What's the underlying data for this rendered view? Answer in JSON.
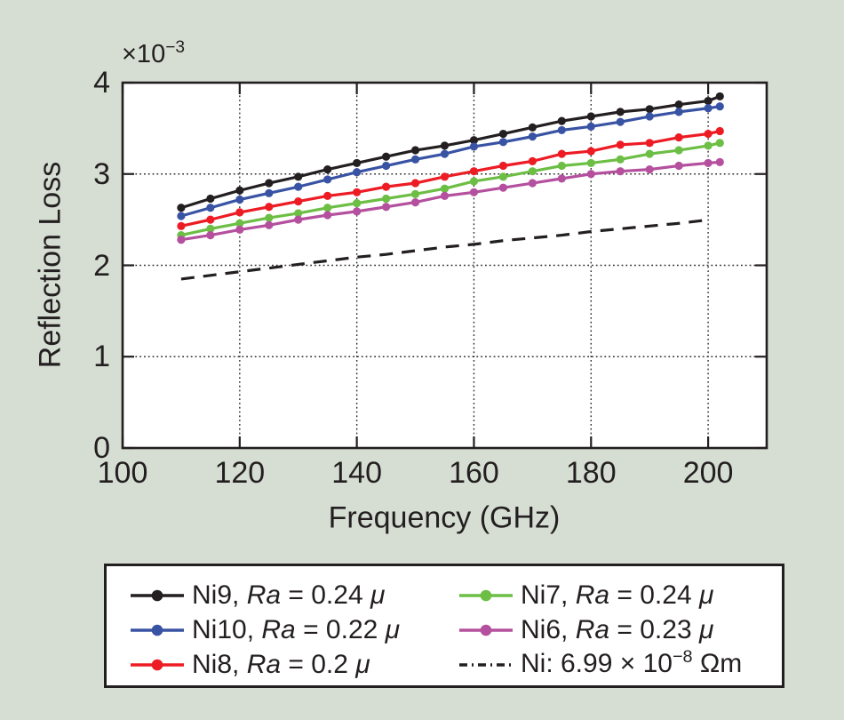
{
  "figure": {
    "background_color": "#d6ded3",
    "plot_background_color": "#ffffff",
    "frame_color": "#231f20",
    "grid_color": "#2e2e2e",
    "text_color": "#231f20"
  },
  "chart_data": {
    "type": "line",
    "title": "",
    "xlabel": "Frequency (GHz)",
    "ylabel": "Reflection Loss",
    "y_axis_multiplier": "×10⁻³",
    "y_axis_multiplier_tokens": [
      {
        "t": "×10"
      },
      {
        "t": "−3",
        "sup": true
      }
    ],
    "xlim": [
      100,
      210
    ],
    "ylim": [
      0,
      4
    ],
    "xticks": [
      100,
      120,
      140,
      160,
      180,
      200
    ],
    "yticks": [
      0,
      1,
      2,
      3,
      4
    ],
    "grid": "dotted, at x=120..200 step 20 and y=1,2,3",
    "legend_position": "below plot, 2 columns, boxed",
    "x": [
      110,
      115,
      120,
      125,
      130,
      135,
      140,
      145,
      150,
      155,
      160,
      165,
      170,
      175,
      180,
      185,
      190,
      195,
      200,
      202
    ],
    "series": [
      {
        "name": "Ni9",
        "label": "Ni9, Ra = 0.24 μ",
        "color": "#231f20",
        "line": "solid",
        "marker": "circle",
        "values": [
          2.63,
          2.73,
          2.82,
          2.9,
          2.97,
          3.05,
          3.12,
          3.19,
          3.26,
          3.31,
          3.37,
          3.44,
          3.51,
          3.58,
          3.63,
          3.68,
          3.71,
          3.76,
          3.8,
          3.85
        ]
      },
      {
        "name": "Ni10",
        "label": "Ni10, Ra = 0.22 μ",
        "color": "#3953a4",
        "line": "solid",
        "marker": "circle",
        "values": [
          2.54,
          2.63,
          2.72,
          2.79,
          2.86,
          2.94,
          3.02,
          3.09,
          3.16,
          3.22,
          3.3,
          3.35,
          3.41,
          3.48,
          3.52,
          3.57,
          3.63,
          3.68,
          3.72,
          3.74
        ]
      },
      {
        "name": "Ni8",
        "label": "Ni8, Ra = 0.2 μ",
        "color": "#ed1c24",
        "line": "solid",
        "marker": "circle",
        "values": [
          2.43,
          2.5,
          2.58,
          2.64,
          2.7,
          2.76,
          2.8,
          2.86,
          2.9,
          2.97,
          3.03,
          3.09,
          3.14,
          3.22,
          3.25,
          3.32,
          3.34,
          3.4,
          3.44,
          3.47
        ]
      },
      {
        "name": "Ni7",
        "label": "Ni7, Ra = 0.24 μ",
        "color": "#6cbe45",
        "line": "solid",
        "marker": "circle",
        "values": [
          2.33,
          2.4,
          2.46,
          2.52,
          2.57,
          2.63,
          2.68,
          2.73,
          2.78,
          2.84,
          2.92,
          2.97,
          3.03,
          3.09,
          3.12,
          3.16,
          3.22,
          3.26,
          3.31,
          3.34
        ]
      },
      {
        "name": "Ni6",
        "label": "Ni6, Ra = 0.23 μ",
        "color": "#b4509e",
        "line": "solid",
        "marker": "circle",
        "values": [
          2.28,
          2.33,
          2.39,
          2.44,
          2.5,
          2.55,
          2.59,
          2.64,
          2.69,
          2.76,
          2.8,
          2.85,
          2.9,
          2.95,
          3.0,
          3.03,
          3.05,
          3.09,
          3.12,
          3.13
        ]
      },
      {
        "name": "Ni",
        "label": "Ni: 6.99 × 10⁻⁸ Ωm",
        "color": "#231f20",
        "line": "dashed",
        "marker": "none",
        "x": [
          110,
          115,
          120,
          125,
          130,
          135,
          140,
          145,
          150,
          155,
          160,
          165,
          170,
          175,
          180,
          185,
          190,
          195,
          199
        ],
        "values": [
          1.85,
          1.89,
          1.93,
          1.97,
          2.01,
          2.05,
          2.09,
          2.12,
          2.16,
          2.2,
          2.23,
          2.27,
          2.3,
          2.33,
          2.37,
          2.4,
          2.43,
          2.46,
          2.49
        ]
      }
    ],
    "legend": {
      "columns": 2,
      "entries": [
        {
          "series": "Ni9",
          "column": 0,
          "row": 0,
          "tokens": [
            {
              "t": "Ni9, "
            },
            {
              "t": "Ra",
              "i": true
            },
            {
              "t": " = 0.24 "
            },
            {
              "t": "μ",
              "i": true
            }
          ]
        },
        {
          "series": "Ni10",
          "column": 0,
          "row": 1,
          "tokens": [
            {
              "t": "Ni10, "
            },
            {
              "t": "Ra",
              "i": true
            },
            {
              "t": " = 0.22 "
            },
            {
              "t": "μ",
              "i": true
            }
          ]
        },
        {
          "series": "Ni8",
          "column": 0,
          "row": 2,
          "tokens": [
            {
              "t": "Ni8, "
            },
            {
              "t": "Ra",
              "i": true
            },
            {
              "t": " = 0.2 "
            },
            {
              "t": "μ",
              "i": true
            }
          ]
        },
        {
          "series": "Ni7",
          "column": 1,
          "row": 0,
          "tokens": [
            {
              "t": "Ni7, "
            },
            {
              "t": "Ra",
              "i": true
            },
            {
              "t": " = 0.24 "
            },
            {
              "t": "μ",
              "i": true
            }
          ]
        },
        {
          "series": "Ni6",
          "column": 1,
          "row": 1,
          "tokens": [
            {
              "t": "Ni6, "
            },
            {
              "t": "Ra",
              "i": true
            },
            {
              "t": " = 0.23 "
            },
            {
              "t": "μ",
              "i": true
            }
          ]
        },
        {
          "series": "Ni",
          "column": 1,
          "row": 2,
          "tokens": [
            {
              "t": "Ni: 6.99 × 10"
            },
            {
              "t": "−8",
              "sup": true
            },
            {
              "t": " Ωm"
            }
          ]
        }
      ]
    }
  }
}
